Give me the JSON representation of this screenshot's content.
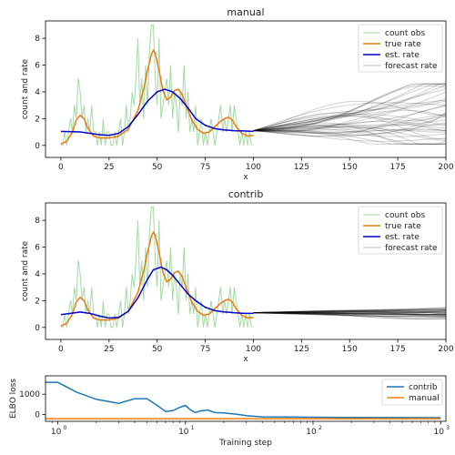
{
  "chart_data": [
    {
      "type": "line",
      "title": "manual",
      "xlabel": "x",
      "ylabel": "count and rate",
      "xlim": [
        -8,
        200
      ],
      "ylim": [
        -0.9,
        9.3
      ],
      "xticks": [
        0,
        25,
        50,
        75,
        100,
        125,
        150,
        175,
        200
      ],
      "yticks": [
        0,
        2,
        4,
        6,
        8
      ],
      "legend": {
        "placement": "top-right",
        "entries": [
          "count obs",
          "true rate",
          "est. rate",
          "forecast rate"
        ]
      },
      "colors": {
        "count_obs": "#8fcf8f",
        "true_rate": "#ee7a0c",
        "est_rate": "#0000cc",
        "forecast": "#000000"
      },
      "true_rate": {
        "x": [
          0,
          3,
          6,
          8,
          10,
          12,
          14,
          17,
          20,
          25,
          30,
          35,
          40,
          43,
          45,
          47,
          48,
          49,
          51,
          53,
          55,
          57,
          59,
          61,
          63,
          65,
          68,
          71,
          74,
          77,
          80,
          83,
          85,
          87,
          89,
          91,
          94,
          97,
          100
        ],
        "y": [
          0.1,
          0.3,
          1.0,
          1.9,
          2.25,
          2.0,
          1.3,
          0.7,
          0.55,
          0.55,
          0.7,
          1.2,
          2.6,
          4.2,
          5.6,
          6.8,
          7.1,
          6.9,
          5.6,
          4.1,
          3.4,
          3.6,
          4.1,
          4.2,
          3.8,
          3.0,
          1.9,
          1.2,
          0.9,
          1.0,
          1.4,
          1.8,
          2.0,
          2.1,
          1.9,
          1.4,
          0.9,
          0.7,
          0.75
        ]
      },
      "est_rate": {
        "x": [
          0,
          10,
          20,
          25,
          30,
          35,
          40,
          45,
          50,
          54,
          58,
          62,
          66,
          70,
          75,
          80,
          85,
          90,
          95,
          100
        ],
        "y": [
          1.05,
          1.0,
          0.8,
          0.75,
          0.9,
          1.4,
          2.3,
          3.3,
          4.0,
          4.2,
          4.0,
          3.5,
          2.8,
          2.0,
          1.5,
          1.25,
          1.15,
          1.1,
          1.08,
          1.05
        ]
      },
      "count_obs": {
        "x": [
          0,
          1,
          2,
          3,
          4,
          5,
          6,
          7,
          8,
          9,
          10,
          11,
          12,
          13,
          14,
          15,
          16,
          17,
          18,
          19,
          20,
          21,
          22,
          23,
          24,
          25,
          26,
          27,
          28,
          29,
          30,
          31,
          32,
          33,
          34,
          35,
          36,
          37,
          38,
          39,
          40,
          41,
          42,
          43,
          44,
          45,
          46,
          47,
          48,
          49,
          50,
          51,
          52,
          53,
          54,
          55,
          56,
          57,
          58,
          59,
          60,
          61,
          62,
          63,
          64,
          65,
          66,
          67,
          68,
          69,
          70,
          71,
          72,
          73,
          74,
          75,
          76,
          77,
          78,
          79,
          80,
          81,
          82,
          83,
          84,
          85,
          86,
          87,
          88,
          89,
          90,
          91,
          92,
          93,
          94,
          95,
          96,
          97,
          98,
          99
        ],
        "y": [
          0,
          0,
          1,
          0,
          1,
          2,
          1,
          3,
          2,
          5,
          4,
          2,
          3,
          1,
          2,
          1,
          3,
          1,
          1,
          0,
          1,
          0,
          2,
          0,
          1,
          1,
          0,
          0,
          1,
          0,
          1,
          2,
          0,
          1,
          3,
          1,
          2,
          4,
          3,
          5,
          8,
          3,
          5,
          2,
          6,
          3,
          7,
          9,
          9,
          5,
          3,
          8,
          2,
          3,
          4,
          5,
          3,
          6,
          2,
          4,
          3,
          1,
          4,
          3,
          6,
          2,
          4,
          1,
          2,
          1,
          3,
          0,
          1,
          2,
          0,
          1,
          0,
          1,
          2,
          1,
          0,
          1,
          2,
          3,
          1,
          2,
          1,
          2,
          3,
          1,
          3,
          2,
          1,
          0,
          1,
          0,
          1,
          0,
          1,
          0
        ]
      },
      "forecast_x": [
        100,
        200
      ],
      "forecast_samples": 40,
      "forecast_range": [
        0.1,
        4.5
      ]
    },
    {
      "type": "line",
      "title": "contrib",
      "xlabel": "x",
      "ylabel": "count and rate",
      "xlim": [
        -8,
        200
      ],
      "ylim": [
        -0.9,
        9.3
      ],
      "xticks": [
        0,
        25,
        50,
        75,
        100,
        125,
        150,
        175,
        200
      ],
      "yticks": [
        0,
        2,
        4,
        6,
        8
      ],
      "legend": {
        "placement": "top-right",
        "entries": [
          "count obs",
          "true rate",
          "est. rate",
          "forecast rate"
        ]
      },
      "colors": {
        "count_obs": "#8fcf8f",
        "true_rate": "#ee7a0c",
        "est_rate": "#0000cc",
        "forecast": "#000000"
      },
      "true_rate": {
        "x": [
          0,
          3,
          6,
          8,
          10,
          12,
          14,
          17,
          20,
          25,
          30,
          35,
          40,
          43,
          45,
          47,
          48,
          49,
          51,
          53,
          55,
          57,
          59,
          61,
          63,
          65,
          68,
          71,
          74,
          77,
          80,
          83,
          85,
          87,
          89,
          91,
          94,
          97,
          100
        ],
        "y": [
          0.1,
          0.3,
          1.0,
          1.9,
          2.25,
          2.0,
          1.3,
          0.7,
          0.55,
          0.55,
          0.7,
          1.2,
          2.6,
          4.2,
          5.6,
          6.8,
          7.1,
          6.9,
          5.6,
          4.1,
          3.4,
          3.6,
          4.1,
          4.2,
          3.8,
          3.0,
          1.9,
          1.2,
          0.9,
          1.0,
          1.4,
          1.8,
          2.0,
          2.1,
          1.9,
          1.4,
          0.9,
          0.7,
          0.75
        ]
      },
      "est_rate": {
        "x": [
          0,
          5,
          10,
          15,
          20,
          25,
          30,
          35,
          40,
          45,
          48,
          52,
          55,
          58,
          62,
          66,
          70,
          75,
          80,
          85,
          90,
          95,
          100
        ],
        "y": [
          0.95,
          1.05,
          1.15,
          1.05,
          0.85,
          0.7,
          0.75,
          1.2,
          2.2,
          3.6,
          4.3,
          4.5,
          4.3,
          3.9,
          3.2,
          2.5,
          2.0,
          1.5,
          1.25,
          1.15,
          1.1,
          1.05,
          1.05
        ]
      },
      "count_obs": {
        "x": [
          0,
          1,
          2,
          3,
          4,
          5,
          6,
          7,
          8,
          9,
          10,
          11,
          12,
          13,
          14,
          15,
          16,
          17,
          18,
          19,
          20,
          21,
          22,
          23,
          24,
          25,
          26,
          27,
          28,
          29,
          30,
          31,
          32,
          33,
          34,
          35,
          36,
          37,
          38,
          39,
          40,
          41,
          42,
          43,
          44,
          45,
          46,
          47,
          48,
          49,
          50,
          51,
          52,
          53,
          54,
          55,
          56,
          57,
          58,
          59,
          60,
          61,
          62,
          63,
          64,
          65,
          66,
          67,
          68,
          69,
          70,
          71,
          72,
          73,
          74,
          75,
          76,
          77,
          78,
          79,
          80,
          81,
          82,
          83,
          84,
          85,
          86,
          87,
          88,
          89,
          90,
          91,
          92,
          93,
          94,
          95,
          96,
          97,
          98,
          99
        ],
        "y": [
          0,
          0,
          1,
          0,
          1,
          2,
          1,
          3,
          2,
          5,
          4,
          2,
          3,
          1,
          2,
          1,
          3,
          1,
          1,
          0,
          1,
          0,
          2,
          0,
          1,
          1,
          0,
          0,
          1,
          0,
          1,
          2,
          0,
          1,
          3,
          1,
          2,
          4,
          3,
          5,
          8,
          3,
          5,
          2,
          6,
          3,
          7,
          9,
          9,
          5,
          3,
          8,
          2,
          3,
          4,
          5,
          3,
          6,
          2,
          4,
          3,
          1,
          4,
          3,
          6,
          2,
          4,
          1,
          2,
          1,
          3,
          0,
          1,
          2,
          0,
          1,
          0,
          1,
          2,
          1,
          0,
          1,
          2,
          3,
          1,
          2,
          1,
          2,
          3,
          1,
          3,
          2,
          1,
          0,
          1,
          0,
          1,
          0,
          1,
          0
        ]
      },
      "forecast_x": [
        100,
        200
      ],
      "forecast_samples": 40,
      "forecast_range": [
        0.7,
        1.4
      ]
    },
    {
      "type": "line",
      "title": "",
      "xlabel": "Training step",
      "ylabel": "ELBO loss",
      "xscale": "log",
      "xlim": [
        0.8,
        1100
      ],
      "ylim": [
        -330,
        1900
      ],
      "xticks": [
        1,
        10,
        100,
        1000
      ],
      "xtick_labels": [
        "10",
        "10",
        "10",
        "10"
      ],
      "xtick_exponents": [
        "0",
        "1",
        "2",
        "3"
      ],
      "yticks": [
        0,
        1000
      ],
      "legend": {
        "placement": "top-right",
        "entries": [
          "contrib",
          "manual"
        ]
      },
      "series": [
        {
          "name": "contrib",
          "color": "#1f77b4",
          "x": [
            0.8,
            1,
            1.4,
            2,
            3,
            4,
            5,
            6,
            7,
            8,
            9,
            10,
            11,
            12,
            13,
            15,
            17,
            20,
            25,
            30,
            40,
            60,
            100,
            200,
            500,
            1000
          ],
          "y": [
            1580,
            1580,
            1100,
            750,
            550,
            780,
            780,
            450,
            150,
            200,
            350,
            450,
            220,
            100,
            180,
            220,
            100,
            80,
            20,
            -50,
            -110,
            -120,
            -130,
            -140,
            -145,
            -150
          ]
        },
        {
          "name": "manual",
          "color": "#ff7f0e",
          "x": [
            0.8,
            1,
            10,
            100,
            1000
          ],
          "y": [
            -200,
            -200,
            -200,
            -200,
            -200
          ]
        }
      ]
    }
  ]
}
